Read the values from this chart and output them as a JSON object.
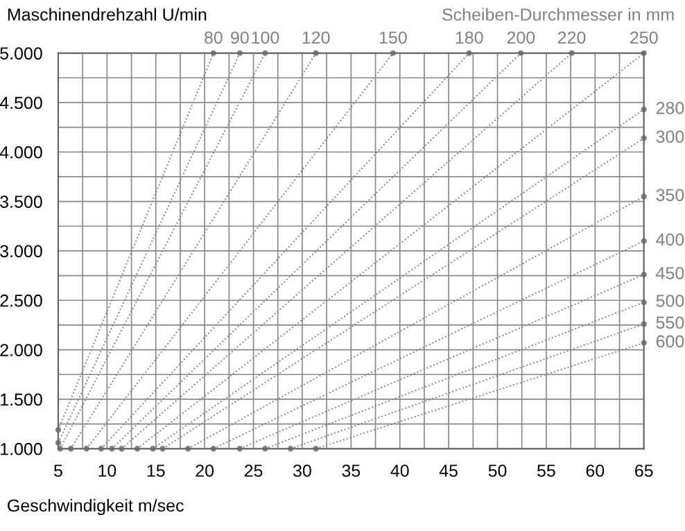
{
  "chart_data": {
    "type": "line",
    "xlabel": "Geschwindigkeit m/sec",
    "ylabel": "Maschinendrehzahl U/min",
    "annotations": [
      "Scheiben-Durchmesser in mm"
    ],
    "xlim": [
      5,
      65
    ],
    "ylim": [
      1000,
      5000
    ],
    "xticks": [
      5,
      {
        "value": 7.5,
        "label": null
      },
      10,
      {
        "value": 12.5,
        "label": null
      },
      15,
      {
        "value": 17.5,
        "label": null
      },
      20,
      {
        "value": 22.5,
        "label": null
      },
      25,
      {
        "value": 27.5,
        "label": null
      },
      30,
      {
        "value": 32.5,
        "label": null
      },
      35,
      {
        "value": 37.5,
        "label": null
      },
      40,
      {
        "value": 42.5,
        "label": null
      },
      45,
      {
        "value": 47.5,
        "label": null
      },
      50,
      {
        "value": 52.5,
        "label": null
      },
      55,
      {
        "value": 57.5,
        "label": null
      },
      60,
      {
        "value": 62.5,
        "label": null
      },
      65
    ],
    "yticks": [
      {
        "value": 1000,
        "label": "1.000"
      },
      {
        "value": 1250,
        "label": null
      },
      {
        "value": 1500,
        "label": "1.500"
      },
      {
        "value": 1750,
        "label": null
      },
      {
        "value": 2000,
        "label": "2.000"
      },
      {
        "value": 2250,
        "label": null
      },
      {
        "value": 2500,
        "label": "2.500"
      },
      {
        "value": 2750,
        "label": null
      },
      {
        "value": 3000,
        "label": "3.000"
      },
      {
        "value": 3250,
        "label": null
      },
      {
        "value": 3500,
        "label": "3.500"
      },
      {
        "value": 3750,
        "label": null
      },
      {
        "value": 4000,
        "label": "4.000"
      },
      {
        "value": 4250,
        "label": null
      },
      {
        "value": 4500,
        "label": "4.500"
      },
      {
        "value": 4750,
        "label": null
      },
      {
        "value": 5000,
        "label": "5.000"
      }
    ],
    "grid": true,
    "marker": "circle",
    "line_style": "dotted",
    "series": [
      {
        "name": "80",
        "color": "#808080",
        "x": [
          5,
          20.9
        ],
        "values": [
          1190,
          5000
        ]
      },
      {
        "name": "90",
        "color": "#808080",
        "x": [
          5,
          23.6
        ],
        "values": [
          1060,
          5000
        ]
      },
      {
        "name": "100",
        "color": "#808080",
        "x": [
          5.2,
          26.2
        ],
        "values": [
          1000,
          5000
        ]
      },
      {
        "name": "120",
        "color": "#808080",
        "x": [
          6.3,
          31.4
        ],
        "values": [
          1000,
          5000
        ]
      },
      {
        "name": "150",
        "color": "#808080",
        "x": [
          7.9,
          39.3
        ],
        "values": [
          1000,
          5000
        ]
      },
      {
        "name": "180",
        "color": "#808080",
        "x": [
          9.4,
          47.1
        ],
        "values": [
          1000,
          5000
        ]
      },
      {
        "name": "200",
        "color": "#808080",
        "x": [
          10.5,
          52.4
        ],
        "values": [
          1000,
          5000
        ]
      },
      {
        "name": "220",
        "color": "#808080",
        "x": [
          11.5,
          57.6
        ],
        "values": [
          1000,
          5000
        ]
      },
      {
        "name": "250",
        "color": "#808080",
        "x": [
          13.1,
          65
        ],
        "values": [
          1000,
          5000
        ]
      },
      {
        "name": "280",
        "color": "#808080",
        "x": [
          14.7,
          65
        ],
        "values": [
          1000,
          4430
        ]
      },
      {
        "name": "300",
        "color": "#808080",
        "x": [
          15.7,
          65
        ],
        "values": [
          1000,
          4140
        ]
      },
      {
        "name": "350",
        "color": "#808080",
        "x": [
          18.3,
          65
        ],
        "values": [
          1000,
          3550
        ]
      },
      {
        "name": "400",
        "color": "#808080",
        "x": [
          20.9,
          65
        ],
        "values": [
          1000,
          3100
        ]
      },
      {
        "name": "450",
        "color": "#808080",
        "x": [
          23.6,
          65
        ],
        "values": [
          1000,
          2760
        ]
      },
      {
        "name": "500",
        "color": "#808080",
        "x": [
          26.2,
          65
        ],
        "values": [
          1000,
          2480
        ]
      },
      {
        "name": "550",
        "color": "#808080",
        "x": [
          28.8,
          65
        ],
        "values": [
          1000,
          2260
        ]
      },
      {
        "name": "600",
        "color": "#808080",
        "x": [
          31.4,
          65
        ],
        "values": [
          1000,
          2070
        ]
      }
    ]
  }
}
